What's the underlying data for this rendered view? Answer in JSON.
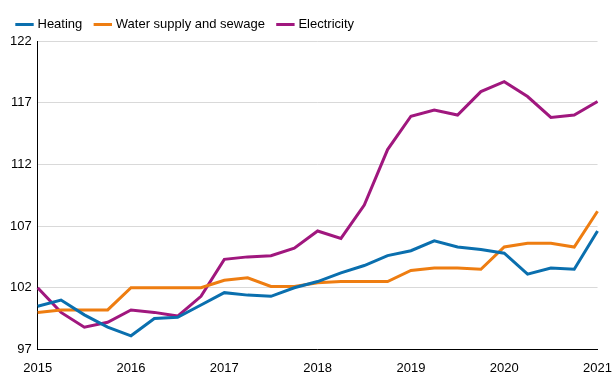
{
  "chart_data": {
    "type": "line",
    "categories": [
      "2015",
      null,
      null,
      null,
      "2016",
      null,
      null,
      null,
      "2017",
      null,
      null,
      null,
      "2018",
      null,
      null,
      null,
      "2019",
      null,
      null,
      null,
      "2020",
      null,
      null,
      null,
      "2021"
    ],
    "series": [
      {
        "name": "Heating",
        "color": "#0a6fae",
        "values": [
          100.5,
          101.0,
          99.8,
          98.8,
          98.1,
          99.5,
          99.6,
          100.6,
          101.6,
          101.4,
          101.3,
          102.0,
          102.5,
          103.2,
          103.8,
          104.6,
          105.0,
          105.8,
          105.3,
          105.1,
          104.8,
          103.1,
          103.6,
          103.5,
          106.6
        ]
      },
      {
        "name": "Water supply and sewage",
        "color": "#ee7d11",
        "values": [
          100.0,
          100.2,
          100.2,
          100.2,
          102.0,
          102.0,
          102.0,
          102.0,
          102.6,
          102.8,
          102.1,
          102.1,
          102.4,
          102.5,
          102.5,
          102.5,
          103.4,
          103.6,
          103.6,
          103.5,
          105.3,
          105.6,
          105.6,
          105.3,
          108.2
        ]
      },
      {
        "name": "Electricity",
        "color": "#a0177e",
        "values": [
          102.0,
          100.0,
          98.8,
          99.2,
          100.2,
          100.0,
          99.7,
          101.3,
          104.3,
          104.5,
          104.6,
          105.2,
          106.6,
          106.0,
          108.7,
          113.2,
          115.9,
          116.4,
          116.0,
          117.9,
          118.7,
          117.5,
          115.8,
          116.0,
          117.1
        ]
      }
    ],
    "ylim": [
      97,
      122
    ],
    "yticks": [
      97,
      102,
      107,
      112,
      117,
      122
    ],
    "grid": true,
    "legend": "top-left"
  }
}
